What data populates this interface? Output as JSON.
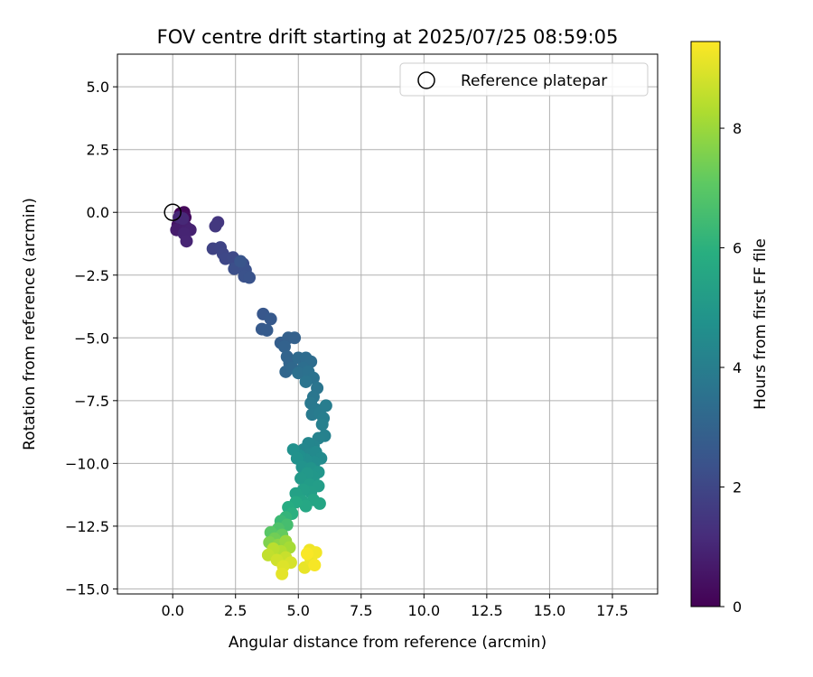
{
  "chart_data": {
    "type": "scatter",
    "title": "FOV centre drift starting at 2025/07/25 08:59:05",
    "xlabel": "Angular distance from reference (arcmin)",
    "ylabel": "Rotation from reference (arcmin)",
    "xlim": [
      -2.2,
      19.3
    ],
    "ylim": [
      -15.2,
      6.3
    ],
    "xticks": [
      0.0,
      2.5,
      5.0,
      7.5,
      10.0,
      12.5,
      15.0,
      17.5
    ],
    "yticks": [
      5.0,
      2.5,
      0.0,
      -2.5,
      -5.0,
      -7.5,
      -10.0,
      -12.5,
      -15.0
    ],
    "xtick_labels": [
      "0.0",
      "2.5",
      "5.0",
      "7.5",
      "10.0",
      "12.5",
      "15.0",
      "17.5"
    ],
    "ytick_labels": [
      "5.0",
      "2.5",
      "0.0",
      "−2.5",
      "−5.0",
      "−7.5",
      "−10.0",
      "−12.5",
      "−15.0"
    ],
    "grid": true,
    "legend": {
      "position": "top-right",
      "entries": [
        "Reference platepar"
      ]
    },
    "reference_point": {
      "x": 0.0,
      "y": 0.0
    },
    "colorbar": {
      "label": "Hours from first FF file",
      "min": 0,
      "max": 9.45,
      "ticks": [
        0,
        2,
        4,
        6,
        8
      ],
      "tick_labels": [
        "0",
        "2",
        "4",
        "6",
        "8"
      ],
      "colormap": "viridis"
    },
    "points": [
      [
        0.3,
        -0.05,
        0.1
      ],
      [
        0.45,
        0.0,
        0.2
      ],
      [
        0.5,
        -0.2,
        0.3
      ],
      [
        0.35,
        -0.3,
        0.4
      ],
      [
        0.2,
        -0.5,
        0.5
      ],
      [
        0.3,
        -0.6,
        0.6
      ],
      [
        0.4,
        -0.4,
        0.7
      ],
      [
        0.15,
        -0.7,
        0.75
      ],
      [
        0.5,
        -0.55,
        0.8
      ],
      [
        0.6,
        -0.65,
        0.85
      ],
      [
        0.7,
        -0.7,
        0.9
      ],
      [
        0.45,
        -0.85,
        0.95
      ],
      [
        0.55,
        -1.15,
        1.0
      ],
      [
        0.25,
        -0.2,
        1.05
      ],
      [
        0.4,
        -0.25,
        1.1
      ],
      [
        1.8,
        -0.4,
        1.5
      ],
      [
        1.7,
        -0.55,
        1.55
      ],
      [
        1.6,
        -1.45,
        1.9
      ],
      [
        1.9,
        -1.4,
        1.95
      ],
      [
        2.0,
        -1.65,
        2.0
      ],
      [
        2.1,
        -1.85,
        2.05
      ],
      [
        2.4,
        -1.8,
        2.1
      ],
      [
        2.5,
        -2.05,
        2.15
      ],
      [
        2.6,
        -2.2,
        2.2
      ],
      [
        2.8,
        -2.05,
        2.25
      ],
      [
        2.45,
        -2.25,
        2.3
      ],
      [
        2.9,
        -2.3,
        2.35
      ],
      [
        2.85,
        -2.55,
        2.4
      ],
      [
        3.05,
        -2.6,
        2.45
      ],
      [
        2.7,
        -1.95,
        2.5
      ],
      [
        3.6,
        -4.05,
        2.6
      ],
      [
        3.9,
        -4.25,
        2.65
      ],
      [
        3.55,
        -4.65,
        2.7
      ],
      [
        3.75,
        -4.7,
        2.75
      ],
      [
        4.3,
        -5.2,
        2.85
      ],
      [
        4.6,
        -5.0,
        2.9
      ],
      [
        4.85,
        -5.0,
        2.95
      ],
      [
        4.45,
        -5.35,
        3.0
      ],
      [
        4.55,
        -5.75,
        3.05
      ],
      [
        4.65,
        -6.0,
        3.1
      ],
      [
        4.5,
        -6.35,
        3.15
      ],
      [
        4.75,
        -6.2,
        3.2
      ],
      [
        5.0,
        -5.8,
        3.3
      ],
      [
        5.3,
        -5.8,
        3.35
      ],
      [
        5.5,
        -5.95,
        3.4
      ],
      [
        5.2,
        -6.2,
        3.45
      ],
      [
        5.0,
        -6.4,
        3.5
      ],
      [
        5.4,
        -6.35,
        3.55
      ],
      [
        5.6,
        -6.6,
        3.6
      ],
      [
        5.3,
        -6.75,
        3.65
      ],
      [
        5.75,
        -7.0,
        3.7
      ],
      [
        5.6,
        -7.35,
        3.75
      ],
      [
        5.5,
        -7.6,
        3.8
      ],
      [
        5.7,
        -7.85,
        3.85
      ],
      [
        5.55,
        -8.05,
        3.9
      ],
      [
        5.85,
        -8.0,
        3.95
      ],
      [
        6.1,
        -7.7,
        4.0
      ],
      [
        6.0,
        -8.2,
        4.05
      ],
      [
        5.95,
        -8.45,
        4.1
      ],
      [
        6.05,
        -8.9,
        4.15
      ],
      [
        5.8,
        -9.0,
        4.2
      ],
      [
        5.6,
        -9.3,
        4.3
      ],
      [
        5.4,
        -9.2,
        4.35
      ],
      [
        5.2,
        -9.45,
        4.4
      ],
      [
        5.45,
        -9.65,
        4.45
      ],
      [
        5.7,
        -9.55,
        4.5
      ],
      [
        5.9,
        -9.8,
        4.55
      ],
      [
        5.65,
        -9.95,
        4.6
      ],
      [
        5.3,
        -9.85,
        4.65
      ],
      [
        5.05,
        -9.7,
        4.7
      ],
      [
        4.8,
        -9.45,
        4.75
      ],
      [
        4.95,
        -9.8,
        4.8
      ],
      [
        5.15,
        -10.15,
        4.85
      ],
      [
        5.5,
        -10.2,
        4.9
      ],
      [
        5.8,
        -10.35,
        4.95
      ],
      [
        5.6,
        -10.55,
        5.0
      ],
      [
        5.35,
        -10.4,
        5.05
      ],
      [
        5.1,
        -10.6,
        5.1
      ],
      [
        5.45,
        -10.85,
        5.2
      ],
      [
        5.8,
        -10.9,
        5.25
      ],
      [
        5.5,
        -11.15,
        5.3
      ],
      [
        5.2,
        -11.05,
        5.35
      ],
      [
        4.9,
        -11.2,
        5.4
      ],
      [
        5.15,
        -11.5,
        5.5
      ],
      [
        5.6,
        -11.45,
        5.55
      ],
      [
        5.85,
        -11.6,
        5.6
      ],
      [
        5.3,
        -11.7,
        5.65
      ],
      [
        4.9,
        -11.55,
        5.75
      ],
      [
        4.6,
        -11.75,
        5.85
      ],
      [
        4.75,
        -12.0,
        6.0
      ],
      [
        4.5,
        -12.15,
        6.2
      ],
      [
        4.3,
        -12.3,
        6.4
      ],
      [
        4.55,
        -12.45,
        6.6
      ],
      [
        4.2,
        -12.6,
        6.8
      ],
      [
        3.9,
        -12.75,
        7.0
      ],
      [
        4.35,
        -12.85,
        7.2
      ],
      [
        4.05,
        -13.0,
        7.4
      ],
      [
        3.85,
        -13.15,
        7.6
      ],
      [
        4.2,
        -13.25,
        7.8
      ],
      [
        4.5,
        -13.1,
        8.0
      ],
      [
        4.65,
        -13.35,
        8.2
      ],
      [
        4.3,
        -13.5,
        8.4
      ],
      [
        4.0,
        -13.4,
        8.5
      ],
      [
        3.8,
        -13.65,
        8.6
      ],
      [
        4.5,
        -13.75,
        8.7
      ],
      [
        4.15,
        -13.85,
        8.8
      ],
      [
        4.7,
        -13.95,
        8.9
      ],
      [
        4.4,
        -14.1,
        9.0
      ],
      [
        4.35,
        -14.4,
        9.1
      ],
      [
        5.25,
        -14.15,
        9.15
      ],
      [
        5.5,
        -13.85,
        9.2
      ],
      [
        5.45,
        -13.45,
        9.25
      ],
      [
        5.7,
        -13.55,
        9.3
      ],
      [
        5.65,
        -14.05,
        9.35
      ],
      [
        5.35,
        -13.6,
        9.4
      ]
    ]
  }
}
